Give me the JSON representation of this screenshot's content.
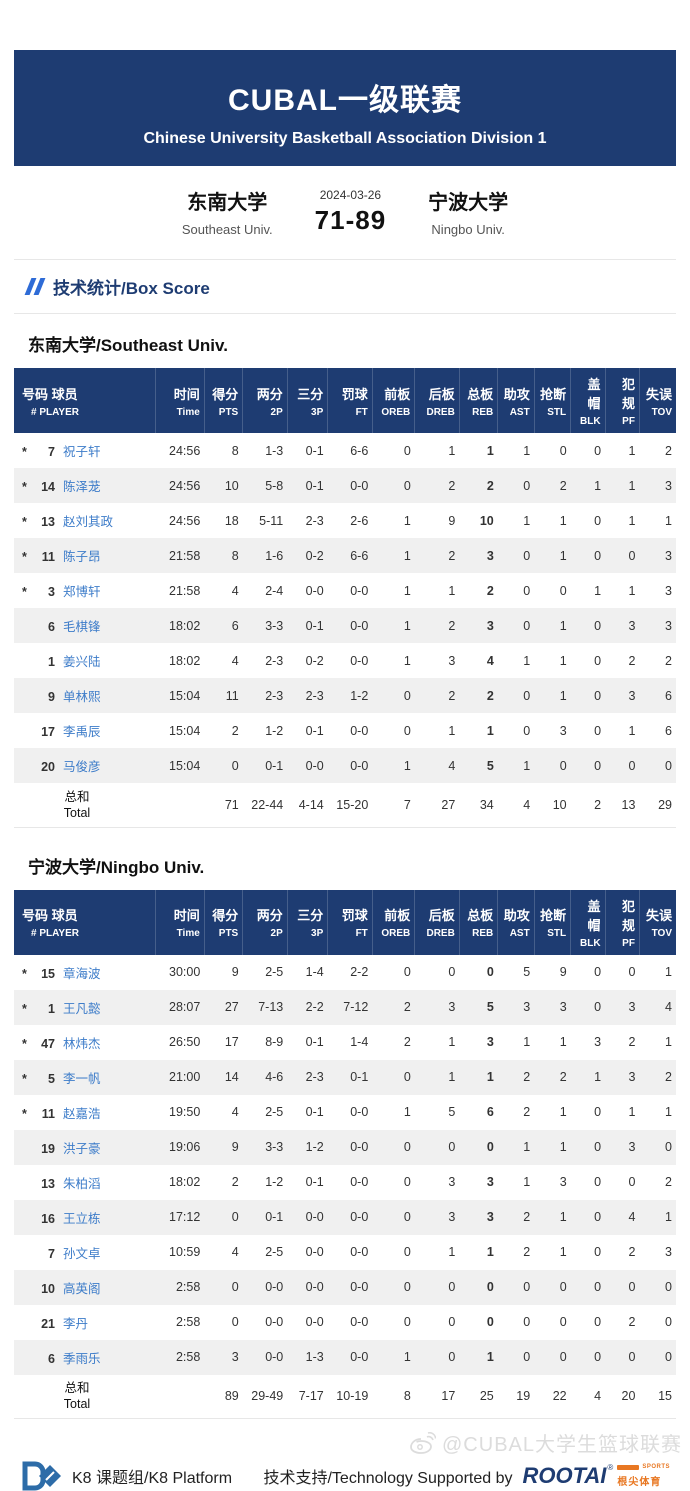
{
  "banner": {
    "title": "CUBAL一级联赛",
    "subtitle": "Chinese University Basketball Association Division 1"
  },
  "match": {
    "date": "2024-03-26",
    "score": "71-89",
    "home_cn": "东南大学",
    "home_en": "Southeast Univ.",
    "away_cn": "宁波大学",
    "away_en": "Ningbo Univ."
  },
  "section_title": "技术统计/Box Score",
  "columns": [
    {
      "cn": "号码 球员",
      "en": "# PLAYER"
    },
    {
      "cn": "时间",
      "en": "Time"
    },
    {
      "cn": "得分",
      "en": "PTS"
    },
    {
      "cn": "两分",
      "en": "2P"
    },
    {
      "cn": "三分",
      "en": "3P"
    },
    {
      "cn": "罚球",
      "en": "FT"
    },
    {
      "cn": "前板",
      "en": "OREB"
    },
    {
      "cn": "后板",
      "en": "DREB"
    },
    {
      "cn": "总板",
      "en": "REB"
    },
    {
      "cn": "助攻",
      "en": "AST"
    },
    {
      "cn": "抢断",
      "en": "STL"
    },
    {
      "cn": "盖帽",
      "en": "BLK"
    },
    {
      "cn": "犯规",
      "en": "PF"
    },
    {
      "cn": "失误",
      "en": "TOV"
    }
  ],
  "teams": [
    {
      "title": "东南大学/Southeast Univ.",
      "players": [
        {
          "starter": true,
          "num": "7",
          "name": "祝子轩",
          "stats": [
            "24:56",
            "8",
            "1-3",
            "0-1",
            "6-6",
            "0",
            "1",
            "1",
            "1",
            "0",
            "0",
            "1",
            "2"
          ]
        },
        {
          "starter": true,
          "num": "14",
          "name": "陈泽茏",
          "stats": [
            "24:56",
            "10",
            "5-8",
            "0-1",
            "0-0",
            "0",
            "2",
            "2",
            "0",
            "2",
            "1",
            "1",
            "3"
          ]
        },
        {
          "starter": true,
          "num": "13",
          "name": "赵刘其政",
          "stats": [
            "24:56",
            "18",
            "5-11",
            "2-3",
            "2-6",
            "1",
            "9",
            "10",
            "1",
            "1",
            "0",
            "1",
            "1"
          ]
        },
        {
          "starter": true,
          "num": "11",
          "name": "陈子昂",
          "stats": [
            "21:58",
            "8",
            "1-6",
            "0-2",
            "6-6",
            "1",
            "2",
            "3",
            "0",
            "1",
            "0",
            "0",
            "3"
          ]
        },
        {
          "starter": true,
          "num": "3",
          "name": "郑博轩",
          "stats": [
            "21:58",
            "4",
            "2-4",
            "0-0",
            "0-0",
            "1",
            "1",
            "2",
            "0",
            "0",
            "1",
            "1",
            "3"
          ]
        },
        {
          "starter": false,
          "num": "6",
          "name": "毛棋锋",
          "stats": [
            "18:02",
            "6",
            "3-3",
            "0-1",
            "0-0",
            "1",
            "2",
            "3",
            "0",
            "1",
            "0",
            "3",
            "3"
          ]
        },
        {
          "starter": false,
          "num": "1",
          "name": "姜兴陆",
          "stats": [
            "18:02",
            "4",
            "2-3",
            "0-2",
            "0-0",
            "1",
            "3",
            "4",
            "1",
            "1",
            "0",
            "2",
            "2"
          ]
        },
        {
          "starter": false,
          "num": "9",
          "name": "单林熙",
          "stats": [
            "15:04",
            "11",
            "2-3",
            "2-3",
            "1-2",
            "0",
            "2",
            "2",
            "0",
            "1",
            "0",
            "3",
            "6"
          ]
        },
        {
          "starter": false,
          "num": "17",
          "name": "李禹辰",
          "stats": [
            "15:04",
            "2",
            "1-2",
            "0-1",
            "0-0",
            "0",
            "1",
            "1",
            "0",
            "3",
            "0",
            "1",
            "6"
          ]
        },
        {
          "starter": false,
          "num": "20",
          "name": "马俊彦",
          "stats": [
            "15:04",
            "0",
            "0-1",
            "0-0",
            "0-0",
            "1",
            "4",
            "5",
            "1",
            "0",
            "0",
            "0",
            "0"
          ]
        }
      ],
      "total": {
        "label_cn": "总和",
        "label_en": "Total",
        "stats": [
          "",
          "71",
          "22-44",
          "4-14",
          "15-20",
          "7",
          "27",
          "34",
          "4",
          "10",
          "2",
          "13",
          "29"
        ]
      }
    },
    {
      "title": "宁波大学/Ningbo Univ.",
      "players": [
        {
          "starter": true,
          "num": "15",
          "name": "章海波",
          "stats": [
            "30:00",
            "9",
            "2-5",
            "1-4",
            "2-2",
            "0",
            "0",
            "0",
            "5",
            "9",
            "0",
            "0",
            "1"
          ]
        },
        {
          "starter": true,
          "num": "1",
          "name": "王凡懿",
          "stats": [
            "28:07",
            "27",
            "7-13",
            "2-2",
            "7-12",
            "2",
            "3",
            "5",
            "3",
            "3",
            "0",
            "3",
            "4"
          ]
        },
        {
          "starter": true,
          "num": "47",
          "name": "林炜杰",
          "stats": [
            "26:50",
            "17",
            "8-9",
            "0-1",
            "1-4",
            "2",
            "1",
            "3",
            "1",
            "1",
            "3",
            "2",
            "1"
          ]
        },
        {
          "starter": true,
          "num": "5",
          "name": "李一帆",
          "stats": [
            "21:00",
            "14",
            "4-6",
            "2-3",
            "0-1",
            "0",
            "1",
            "1",
            "2",
            "2",
            "1",
            "3",
            "2"
          ]
        },
        {
          "starter": true,
          "num": "11",
          "name": "赵嘉浩",
          "stats": [
            "19:50",
            "4",
            "2-5",
            "0-1",
            "0-0",
            "1",
            "5",
            "6",
            "2",
            "1",
            "0",
            "1",
            "1"
          ]
        },
        {
          "starter": false,
          "num": "19",
          "name": "洪子豪",
          "stats": [
            "19:06",
            "9",
            "3-3",
            "1-2",
            "0-0",
            "0",
            "0",
            "0",
            "1",
            "1",
            "0",
            "3",
            "0"
          ]
        },
        {
          "starter": false,
          "num": "13",
          "name": "朱柏滔",
          "stats": [
            "18:02",
            "2",
            "1-2",
            "0-1",
            "0-0",
            "0",
            "3",
            "3",
            "1",
            "3",
            "0",
            "0",
            "2"
          ]
        },
        {
          "starter": false,
          "num": "16",
          "name": "王立栋",
          "stats": [
            "17:12",
            "0",
            "0-1",
            "0-0",
            "0-0",
            "0",
            "3",
            "3",
            "2",
            "1",
            "0",
            "4",
            "1"
          ]
        },
        {
          "starter": false,
          "num": "7",
          "name": "孙文卓",
          "stats": [
            "10:59",
            "4",
            "2-5",
            "0-0",
            "0-0",
            "0",
            "1",
            "1",
            "2",
            "1",
            "0",
            "2",
            "3"
          ]
        },
        {
          "starter": false,
          "num": "10",
          "name": "高英阁",
          "stats": [
            "2:58",
            "0",
            "0-0",
            "0-0",
            "0-0",
            "0",
            "0",
            "0",
            "0",
            "0",
            "0",
            "0",
            "0"
          ]
        },
        {
          "starter": false,
          "num": "21",
          "name": "李丹",
          "stats": [
            "2:58",
            "0",
            "0-0",
            "0-0",
            "0-0",
            "0",
            "0",
            "0",
            "0",
            "0",
            "0",
            "2",
            "0"
          ]
        },
        {
          "starter": false,
          "num": "6",
          "name": "季雨乐",
          "stats": [
            "2:58",
            "3",
            "0-0",
            "1-3",
            "0-0",
            "1",
            "0",
            "1",
            "0",
            "0",
            "0",
            "0",
            "0"
          ]
        }
      ],
      "total": {
        "label_cn": "总和",
        "label_en": "Total",
        "stats": [
          "",
          "89",
          "29-49",
          "7-17",
          "10-19",
          "8",
          "17",
          "25",
          "19",
          "22",
          "4",
          "20",
          "15"
        ]
      }
    }
  ],
  "footer": {
    "platform": "K8 课题组/K8 Platform",
    "tech": "技术支持/Technology Supported by",
    "sponsor_name": "ROOTAI",
    "sponsor_reg": "®",
    "sponsor_tag": "SPORTS",
    "sponsor_cn": "根尖体育"
  },
  "watermark": "@CUBAL大学生篮球联赛",
  "colors": {
    "navy": "#1e3c72",
    "link_blue": "#3d7cc9",
    "orange": "#e87722",
    "row_alt": "#f0f0f0"
  }
}
